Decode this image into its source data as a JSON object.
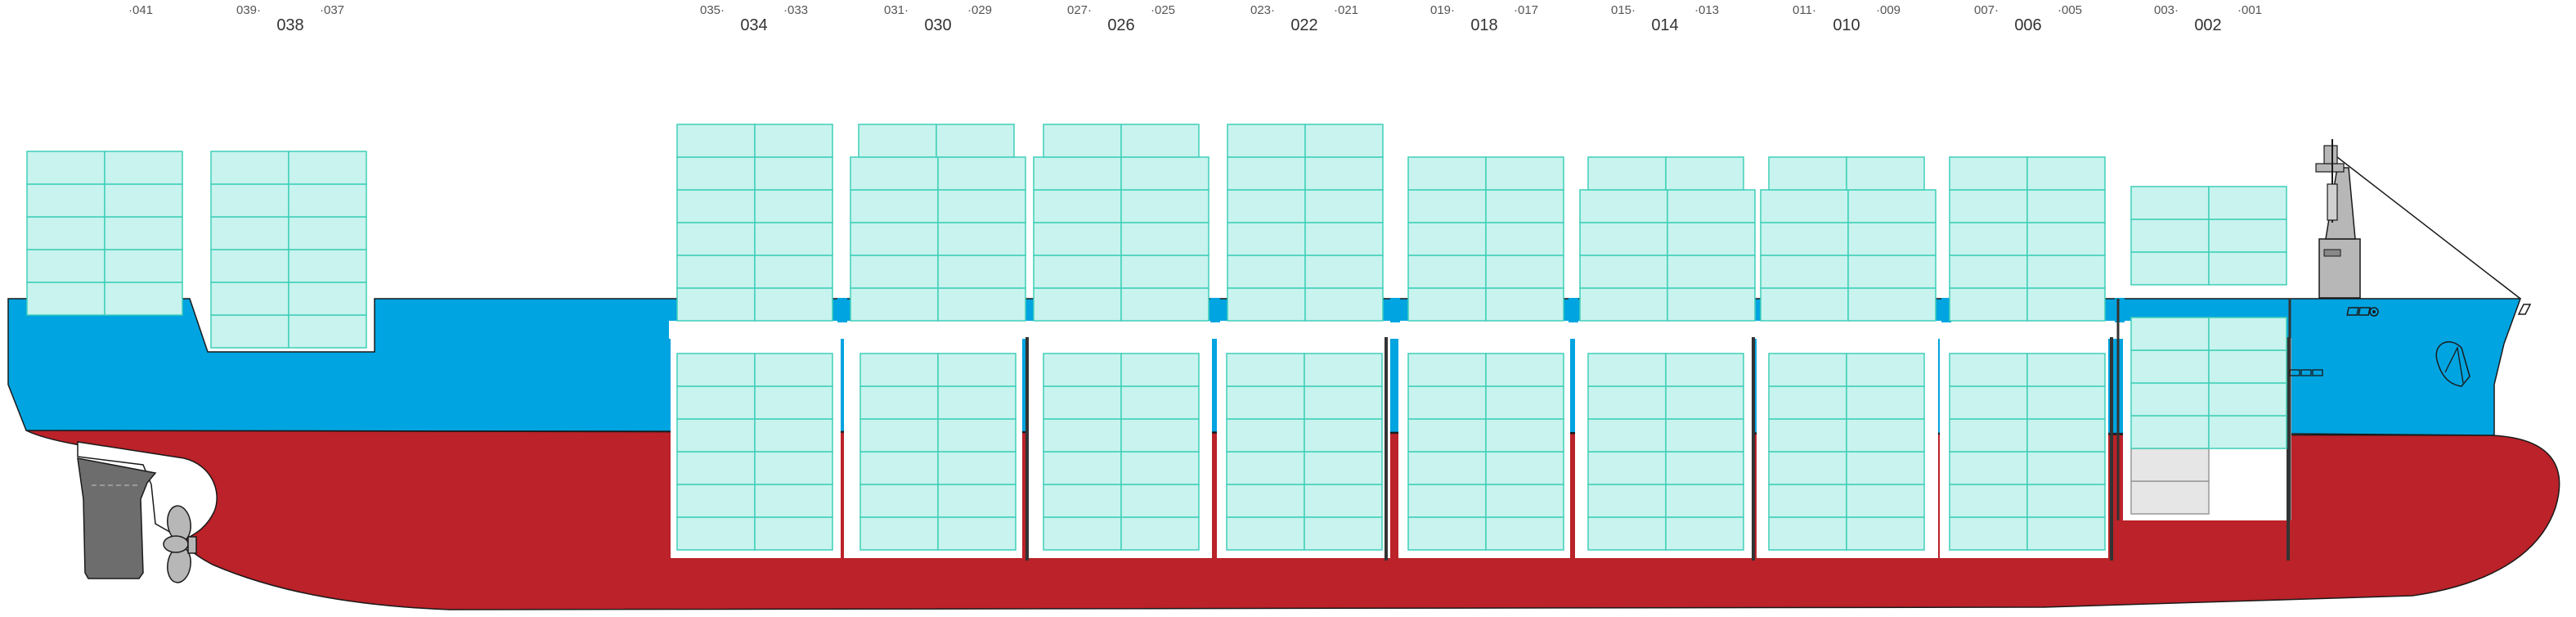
{
  "colors": {
    "hull_red": "#bb2229",
    "hull_blue": "#00a4e0",
    "container_fill": "#c8f3ee",
    "container_stroke": "#3fcfb8",
    "deck_outline": "#1a1a1a",
    "hold_wall": "#ffffff",
    "superstructure": "#b7b7b7",
    "rudder": "#6d6d6d",
    "empty_slot": "#e6e6e6"
  },
  "bays": [
    {
      "main": "038",
      "left": "039",
      "right": "037"
    },
    {
      "main": "",
      "left": "",
      "right": "041"
    },
    {
      "main": "034",
      "left": "035",
      "right": "033"
    },
    {
      "main": "030",
      "left": "031",
      "right": "029"
    },
    {
      "main": "026",
      "left": "027",
      "right": "025"
    },
    {
      "main": "022",
      "left": "023",
      "right": "021"
    },
    {
      "main": "018",
      "left": "019",
      "right": "017"
    },
    {
      "main": "014",
      "left": "015",
      "right": "013"
    },
    {
      "main": "010",
      "left": "011",
      "right": "009"
    },
    {
      "main": "006",
      "left": "007",
      "right": "005"
    },
    {
      "main": "002",
      "left": "003",
      "right": "001"
    }
  ],
  "deck_stacks": [
    {
      "tiers": 5,
      "cols": 2
    },
    {
      "tiers": 6,
      "cols": 2
    },
    {
      "tiers": 6,
      "cols": 2
    },
    {
      "tiers": 6,
      "cols": 2
    },
    {
      "tiers": 6,
      "cols": 2
    },
    {
      "tiers": 6,
      "cols": 2
    },
    {
      "tiers": 5,
      "cols": 2
    },
    {
      "tiers": 5,
      "cols": 2
    },
    {
      "tiers": 5,
      "cols": 2
    },
    {
      "tiers": 5,
      "cols": 2
    },
    {
      "tiers": 3,
      "cols": 2
    }
  ],
  "hold_stacks": [
    {
      "tiers": 6,
      "cols": 2
    },
    {
      "tiers": 6,
      "cols": 2
    },
    {
      "tiers": 6,
      "cols": 2
    },
    {
      "tiers": 6,
      "cols": 2
    },
    {
      "tiers": 6,
      "cols": 2
    },
    {
      "tiers": 6,
      "cols": 2
    },
    {
      "tiers": 6,
      "cols": 2
    },
    {
      "tiers": 6,
      "cols": 2
    },
    {
      "tiers": 4,
      "cols": 2,
      "empty_slots": 2
    }
  ]
}
